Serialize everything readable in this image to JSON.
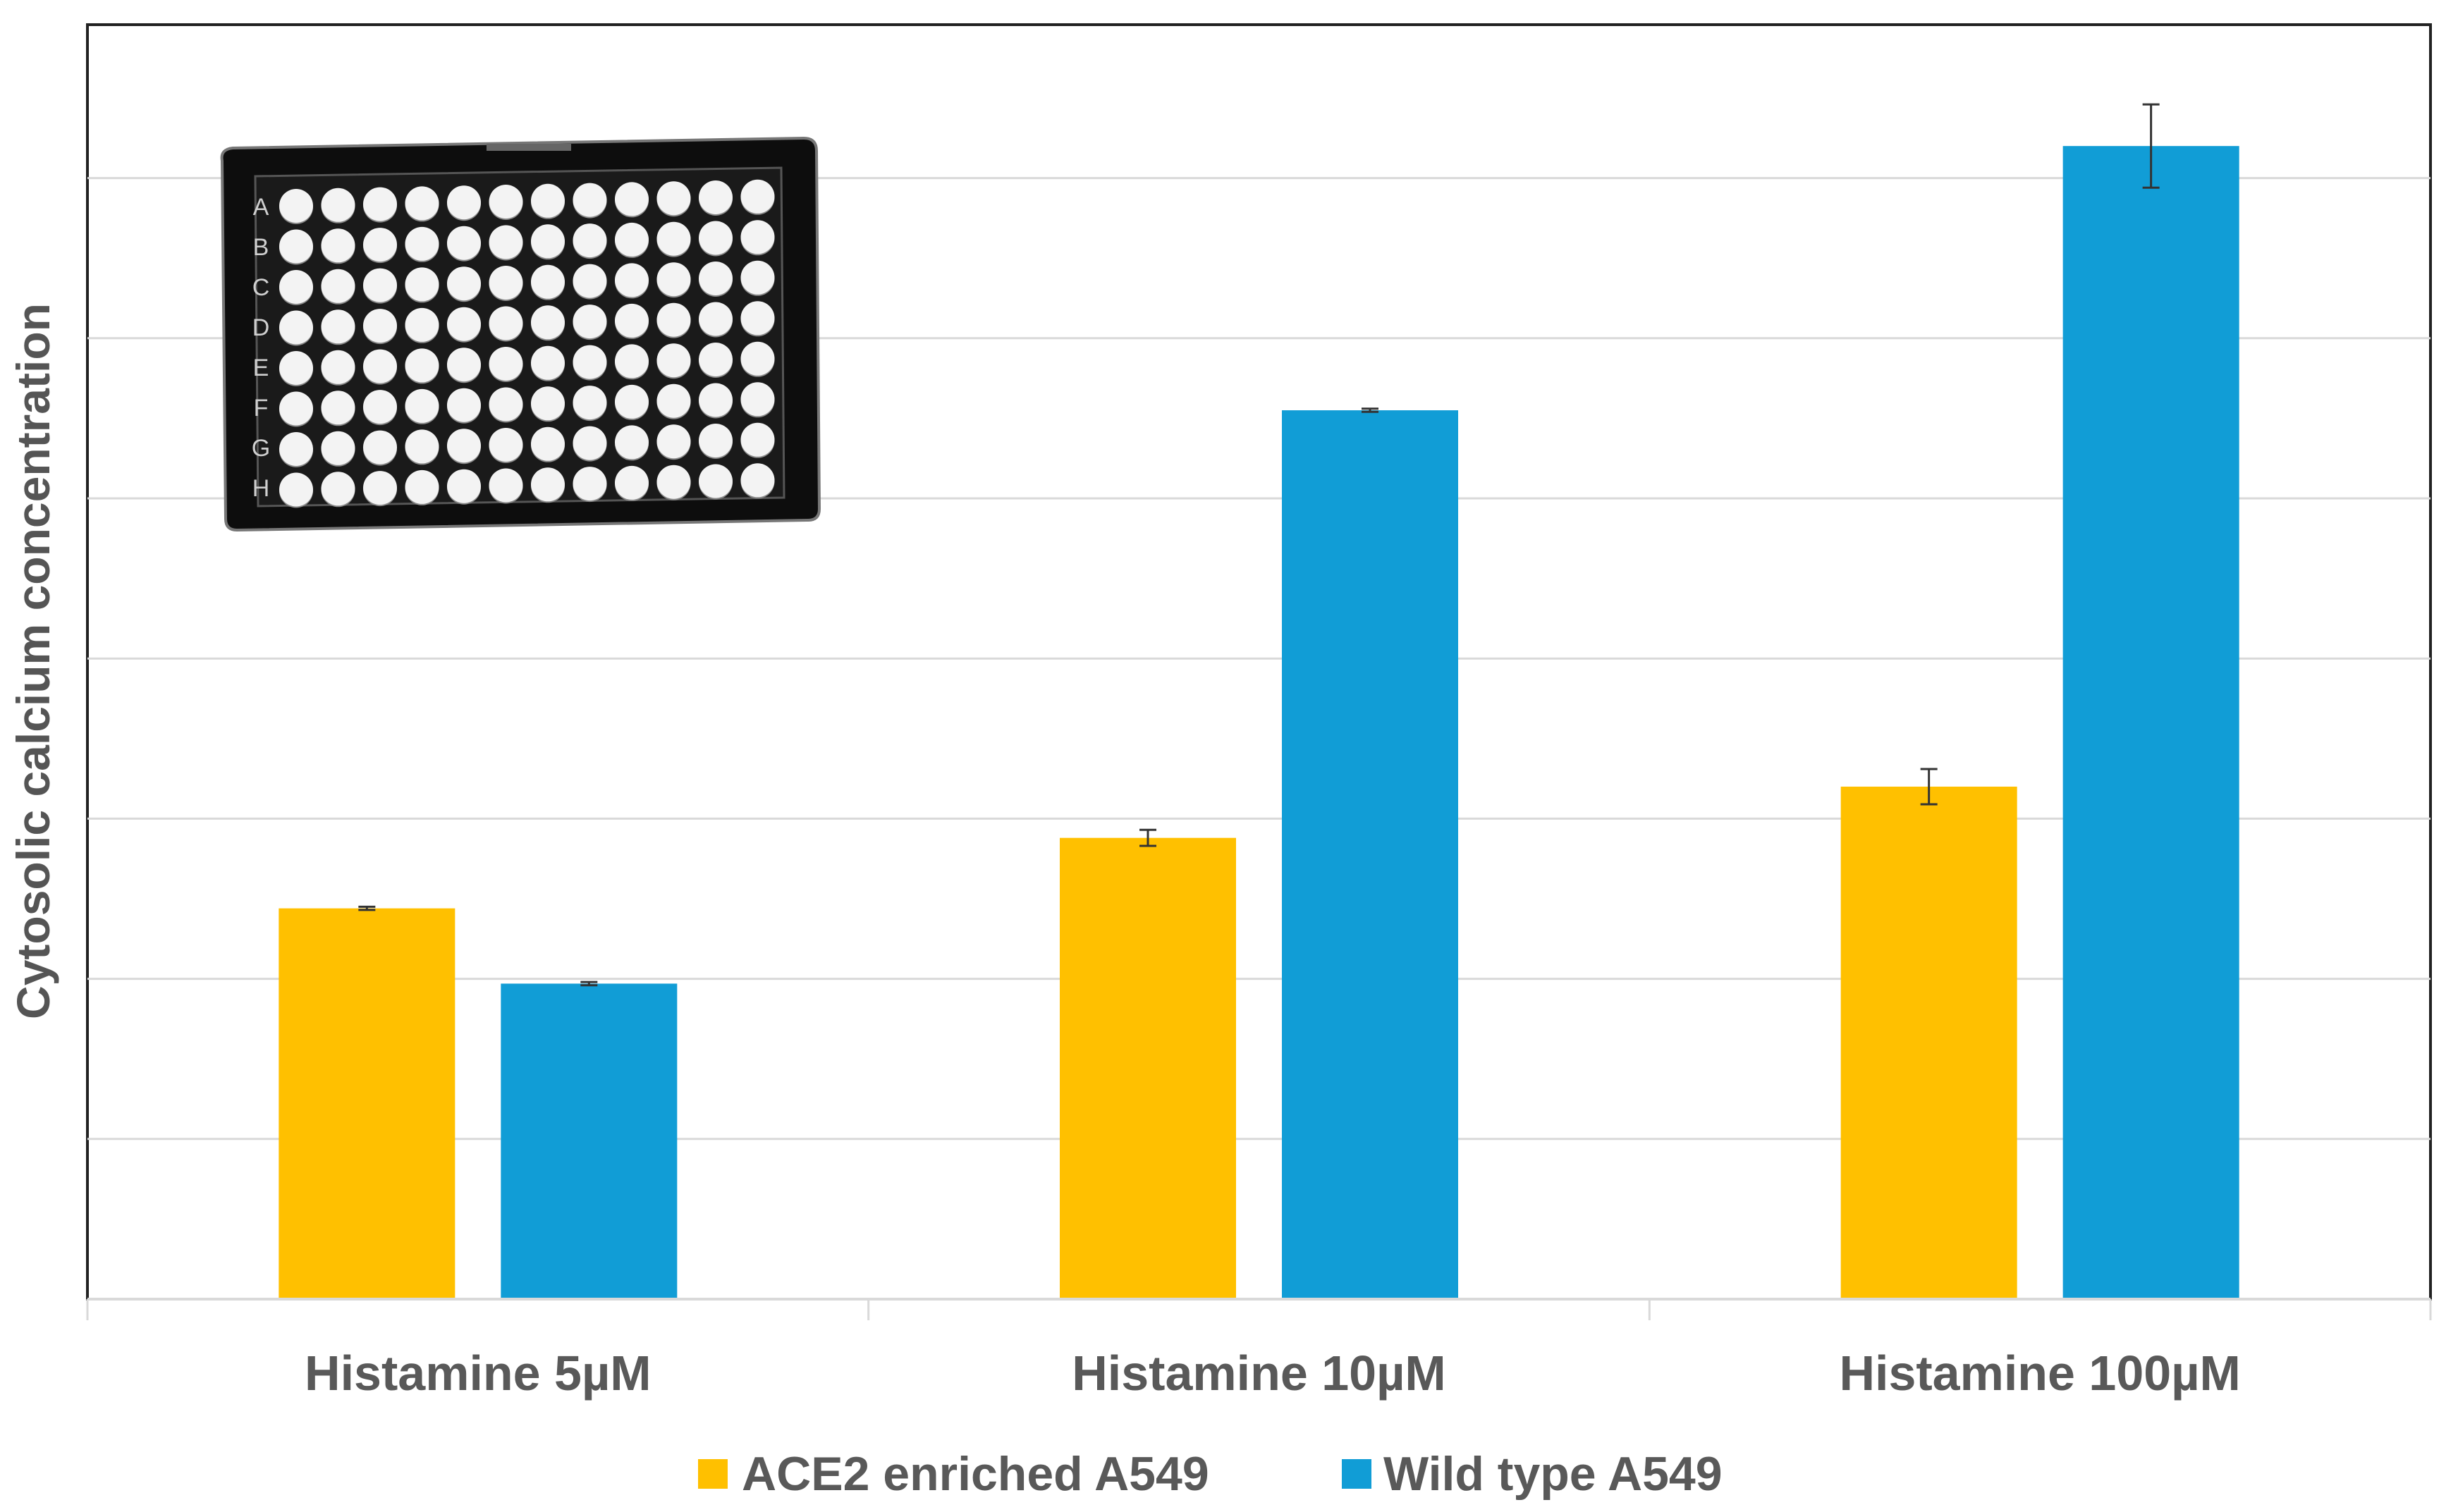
{
  "chart_data": {
    "type": "bar",
    "title": "",
    "xlabel": "",
    "ylabel": "Cytosolic calcium concentration",
    "ylim": [
      0,
      8
    ],
    "y_gridlines": [
      1,
      2,
      3,
      4,
      5,
      6,
      7
    ],
    "y_tick_labels_shown": false,
    "grid": true,
    "categories": [
      "Histamine 5µM",
      "Histamine 10µM",
      "Histamine 100µM"
    ],
    "series": [
      {
        "name": "ACE2 enriched A549",
        "color": "#FFC000",
        "values": [
          2.44,
          2.88,
          3.2
        ],
        "errors": [
          0.01,
          0.05,
          0.11
        ]
      },
      {
        "name": "Wild type A549",
        "color": "#119DD6",
        "values": [
          1.97,
          5.55,
          7.2
        ],
        "errors": [
          0.01,
          0.01,
          0.26
        ]
      }
    ],
    "legend_position": "bottom",
    "inset_image": {
      "description": "96-well microplate",
      "icon": "microplate-icon",
      "row_labels": [
        "A",
        "B",
        "C",
        "D",
        "E",
        "F",
        "G",
        "H"
      ],
      "columns": 12
    }
  }
}
